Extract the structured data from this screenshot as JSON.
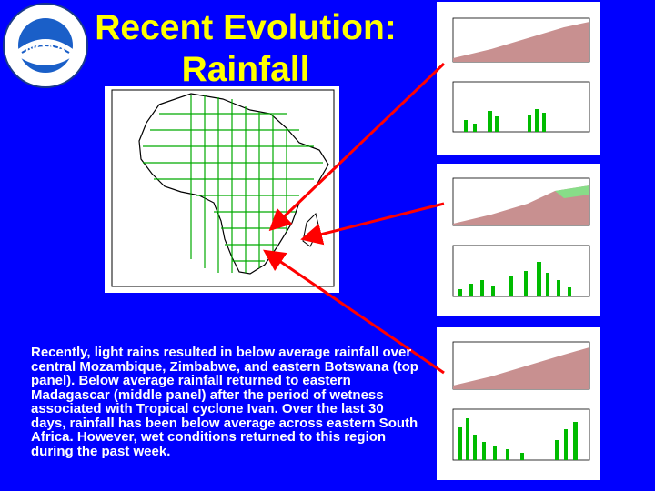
{
  "slide": {
    "title_line1": "Recent Evolution:",
    "title_line2": "Rainfall",
    "body": "Recently, light rains resulted in below average rainfall over central Mozambique, Zimbabwe, and eastern Botswana (top panel). Below average rainfall returned to eastern Madagascar (middle panel) after the period of wetness associated with Tropical cyclone Ivan. Over the last 30 days, rainfall has been below average across eastern South Africa. However, wet conditions returned to this region during the past week."
  },
  "logo": {
    "text": "NOAA",
    "icon": "noaa-logo"
  },
  "colors": {
    "background": "#0000ff",
    "title": "#ffff00",
    "text": "#ffffff",
    "arrow": "#ff0000",
    "grid": "#00aa00"
  }
}
